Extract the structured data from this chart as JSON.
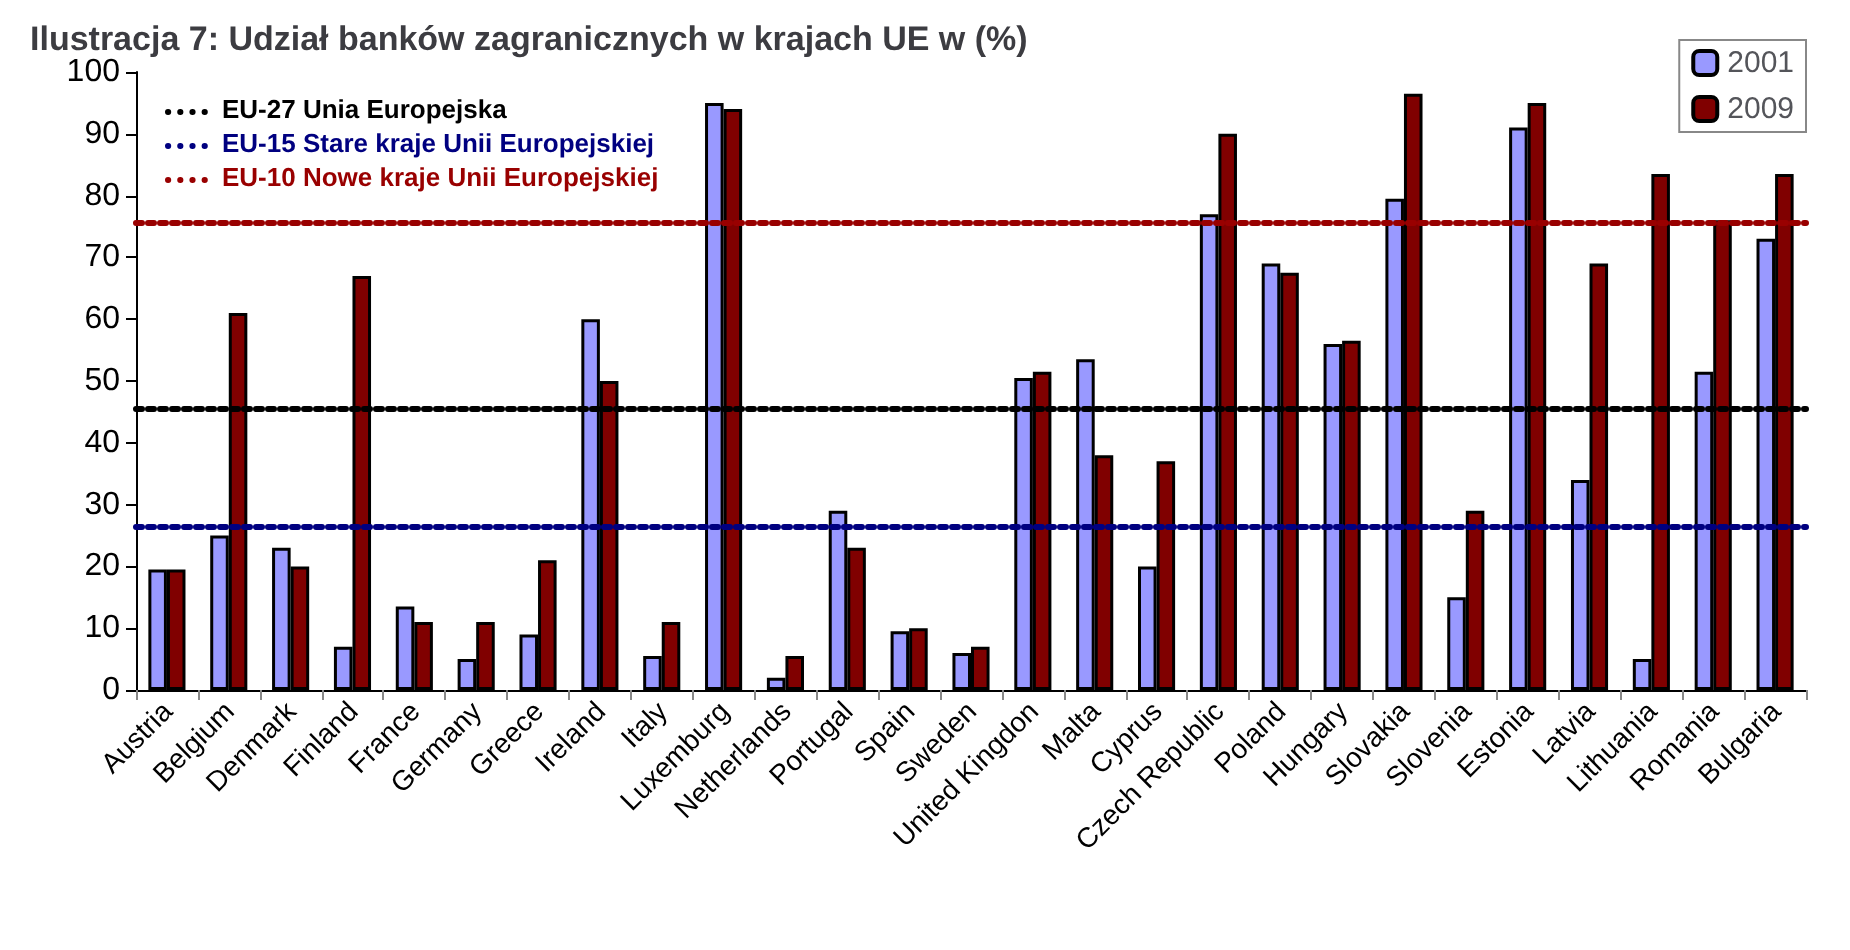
{
  "chart_data": {
    "type": "bar",
    "title": "Ilustracja 7: Udział banków zagranicznych w krajach UE w (%)",
    "categories": [
      "Austria",
      "Belgium",
      "Denmark",
      "Finland",
      "France",
      "Germany",
      "Greece",
      "Ireland",
      "Italy",
      "Luxemburg",
      "Netherlands",
      "Portugal",
      "Spain",
      "Sweden",
      "United Kingdon",
      "Malta",
      "Cyprus",
      "Czech Republic",
      "Poland",
      "Hungary",
      "Slovakia",
      "Slovenia",
      "Estonia",
      "Latvia",
      "Lithuania",
      "Romania",
      "Bulgaria"
    ],
    "series": [
      {
        "name": "2001",
        "color": "#9999ff",
        "values": [
          19.5,
          25,
          23,
          7,
          13.5,
          5,
          9,
          60,
          5.5,
          95,
          2,
          29,
          9.5,
          6,
          50.5,
          53.5,
          20,
          77,
          69,
          56,
          79.5,
          15,
          91,
          34,
          5,
          51.5,
          73
        ]
      },
      {
        "name": "2009",
        "color": "#800000",
        "values": [
          19.5,
          61,
          20,
          67,
          11,
          11,
          21,
          50,
          11,
          94,
          5.5,
          23,
          10,
          7,
          51.5,
          38,
          37,
          90,
          67.5,
          56.5,
          96.5,
          29,
          95,
          69,
          83.5,
          76,
          83.5
        ]
      }
    ],
    "ylim": [
      0,
      100
    ],
    "yticks": [
      0,
      10,
      20,
      30,
      40,
      50,
      60,
      70,
      80,
      90,
      100
    ],
    "grid": false,
    "legend": "top right",
    "ref_lines": [
      {
        "axis": "y",
        "value": 45.5,
        "label": "EU-27 Unia Europejska",
        "color": "#000000",
        "line_style": "dotted"
      },
      {
        "axis": "y",
        "value": 26.5,
        "label": "EU-15 Stare kraje Unii Europejskiej",
        "color": "#000080",
        "line_style": "dotted"
      },
      {
        "axis": "y",
        "value": 75.5,
        "label": "EU-10 Nowe kraje Unii Europejskiej",
        "color": "#990000",
        "line_style": "dotted"
      }
    ]
  }
}
